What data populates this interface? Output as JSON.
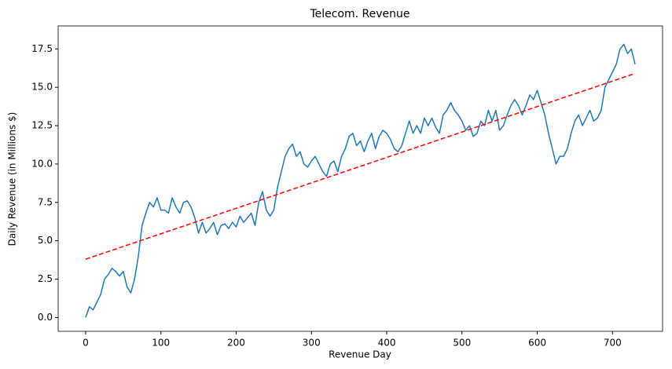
{
  "chart_data": {
    "type": "line",
    "title": "Telecom. Revenue",
    "x_label": "Revenue Day",
    "y_label": "Daily Revenue (in Millions $)",
    "x": [
      0,
      5,
      10,
      15,
      20,
      25,
      30,
      35,
      40,
      45,
      50,
      55,
      60,
      65,
      70,
      75,
      80,
      85,
      90,
      95,
      100,
      105,
      110,
      115,
      120,
      125,
      130,
      135,
      140,
      145,
      150,
      155,
      160,
      165,
      170,
      175,
      180,
      185,
      190,
      195,
      200,
      205,
      210,
      215,
      220,
      225,
      230,
      235,
      240,
      245,
      250,
      255,
      260,
      265,
      270,
      275,
      280,
      285,
      290,
      295,
      300,
      305,
      310,
      315,
      320,
      325,
      330,
      335,
      340,
      345,
      350,
      355,
      360,
      365,
      370,
      375,
      380,
      385,
      390,
      395,
      400,
      405,
      410,
      415,
      420,
      425,
      430,
      435,
      440,
      445,
      450,
      455,
      460,
      465,
      470,
      475,
      480,
      485,
      490,
      495,
      500,
      505,
      510,
      515,
      520,
      525,
      530,
      535,
      540,
      545,
      550,
      555,
      560,
      565,
      570,
      575,
      580,
      585,
      590,
      595,
      600,
      605,
      610,
      615,
      620,
      625,
      630,
      635,
      640,
      645,
      650,
      655,
      660,
      665,
      670,
      675,
      680,
      685,
      690,
      695,
      700,
      705,
      710,
      715,
      720,
      725,
      730
    ],
    "series": [
      {
        "color": "#1f77b4",
        "dash": false,
        "x": [
          0,
          5,
          10,
          15,
          20,
          25,
          30,
          35,
          40,
          45,
          50,
          55,
          60,
          65,
          70,
          75,
          80,
          85,
          90,
          95,
          100,
          105,
          110,
          115,
          120,
          125,
          130,
          135,
          140,
          145,
          150,
          155,
          160,
          165,
          170,
          175,
          180,
          185,
          190,
          195,
          200,
          205,
          210,
          215,
          220,
          225,
          230,
          235,
          240,
          245,
          250,
          255,
          260,
          265,
          270,
          275,
          280,
          285,
          290,
          295,
          300,
          305,
          310,
          315,
          320,
          325,
          330,
          335,
          340,
          345,
          350,
          355,
          360,
          365,
          370,
          375,
          380,
          385,
          390,
          395,
          400,
          405,
          410,
          415,
          420,
          425,
          430,
          435,
          440,
          445,
          450,
          455,
          460,
          465,
          470,
          475,
          480,
          485,
          490,
          495,
          500,
          505,
          510,
          515,
          520,
          525,
          530,
          535,
          540,
          545,
          550,
          555,
          560,
          565,
          570,
          575,
          580,
          585,
          590,
          595,
          600,
          605,
          610,
          615,
          620,
          625,
          630,
          635,
          640,
          645,
          650,
          655,
          660,
          665,
          670,
          675,
          680,
          685,
          690,
          695,
          700,
          705,
          710,
          715,
          720,
          725,
          730
        ],
        "values": [
          0,
          0.7,
          0.5,
          1.0,
          1.5,
          2.5,
          2.8,
          3.2,
          3.0,
          2.7,
          3.0,
          2.0,
          1.6,
          2.5,
          4.0,
          6.0,
          6.8,
          7.5,
          7.2,
          7.8,
          7.0,
          7.0,
          6.8,
          7.8,
          7.2,
          6.8,
          7.5,
          7.6,
          7.2,
          6.5,
          5.5,
          6.2,
          5.5,
          5.8,
          6.2,
          5.4,
          6.0,
          6.1,
          5.8,
          6.2,
          5.9,
          6.6,
          6.2,
          6.5,
          6.8,
          6.0,
          7.5,
          8.2,
          7.0,
          6.6,
          7.0,
          8.5,
          9.5,
          10.5,
          11.0,
          11.3,
          10.5,
          10.8,
          10.0,
          9.8,
          10.2,
          10.5,
          10.0,
          9.5,
          9.2,
          10.0,
          10.2,
          9.5,
          10.5,
          11.0,
          11.8,
          12.0,
          11.2,
          11.5,
          10.8,
          11.5,
          12.0,
          11.0,
          11.8,
          12.2,
          12.0,
          11.6,
          11.0,
          10.8,
          11.2,
          12.0,
          12.8,
          12.0,
          12.5,
          12.0,
          13.0,
          12.5,
          13.0,
          12.4,
          12.0,
          13.2,
          13.5,
          14.0,
          13.5,
          13.2,
          12.8,
          12.2,
          12.5,
          11.8,
          12.0,
          12.8,
          12.5,
          13.5,
          12.8,
          13.5,
          12.2,
          12.5,
          13.2,
          13.8,
          14.2,
          13.8,
          13.2,
          13.8,
          14.5,
          14.2,
          14.8,
          14.0,
          13.2,
          12.0,
          11.0,
          10.0,
          10.5,
          10.5,
          11.0,
          12.0,
          12.8,
          13.2,
          12.5,
          13.0,
          13.5,
          12.8,
          13.0,
          13.5,
          15.0,
          15.5,
          16.0,
          16.5,
          17.5,
          17.8,
          17.2,
          17.5,
          16.5
        ]
      },
      {
        "color": "#ff0000",
        "dash": true,
        "x": [
          0,
          730
        ],
        "values": [
          3.8,
          15.9
        ]
      }
    ],
    "xlim": [
      -36.5,
      766.5
    ],
    "ylim": [
      -0.9,
      19.0
    ],
    "xticks": [
      0,
      100,
      200,
      300,
      400,
      500,
      600,
      700
    ],
    "yticks": [
      {
        "value": 0,
        "label": "0.0"
      },
      2.5,
      {
        "value": 5,
        "label": "5.0"
      },
      7.5,
      {
        "value": 10,
        "label": "10.0"
      },
      12.5,
      {
        "value": 15,
        "label": "15.0"
      },
      17.5
    ]
  }
}
